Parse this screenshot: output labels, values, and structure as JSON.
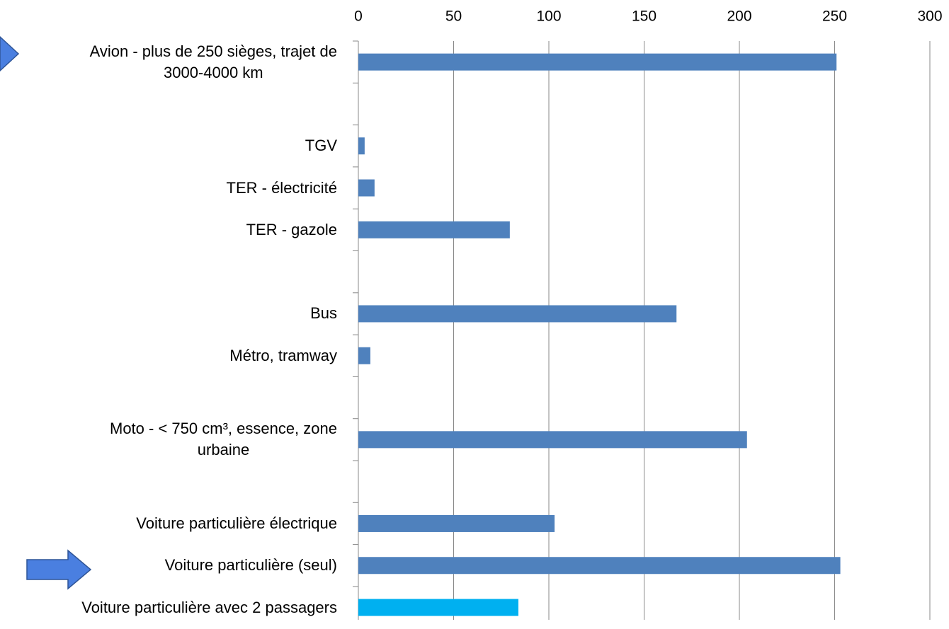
{
  "chart_data": {
    "type": "bar",
    "orientation": "horizontal",
    "categories": [
      "Avion - plus de 250 sièges, trajet de\n3000-4000 km",
      null,
      "TGV",
      "TER - électricité",
      "TER - gazole",
      null,
      "Bus",
      "Métro, tramway",
      null,
      "Moto - < 750 cm³, essence, zone\nurbaine",
      null,
      "Voiture particulière électrique",
      "Voiture particulière (seul)",
      "Voiture particulière avec 2 passagers"
    ],
    "values": [
      251,
      null,
      3.3,
      8.5,
      79.5,
      null,
      167,
      6.3,
      null,
      204,
      null,
      103,
      253,
      84
    ],
    "colors": [
      "#4f81bd",
      "#4f81bd",
      "#4f81bd",
      "#4f81bd",
      "#4f81bd",
      "#4f81bd",
      "#4f81bd",
      "#4f81bd",
      "#4f81bd",
      "#4f81bd",
      "#4f81bd",
      "#4f81bd",
      "#4f81bd",
      "#00b0f0"
    ],
    "xlim": [
      0,
      300
    ],
    "xticks": [
      0,
      50,
      100,
      150,
      200,
      250,
      300
    ],
    "grid": true
  }
}
